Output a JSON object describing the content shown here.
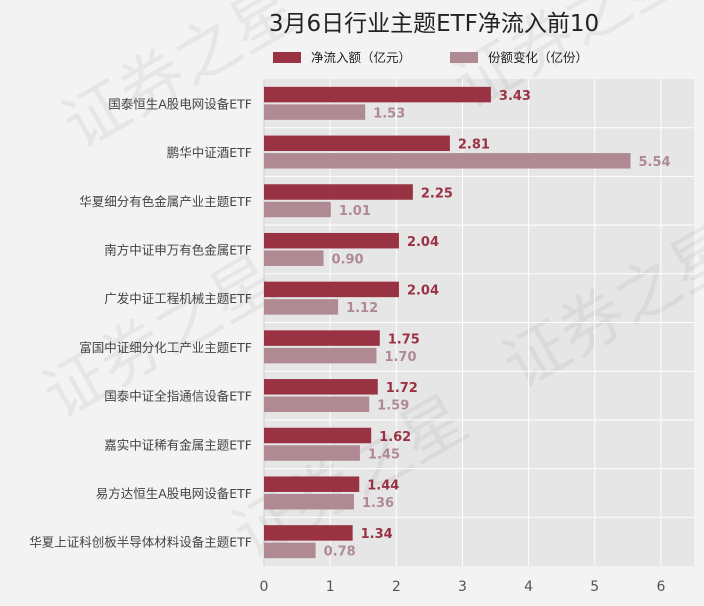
{
  "chart_data": {
    "type": "bar",
    "orientation": "horizontal",
    "title": "3月6日行业主题ETF净流入前10",
    "categories": [
      "国泰恒生A股电网设备ETF",
      "鹏华中证酒ETF",
      "华夏细分有色金属产业主题ETF",
      "南方中证申万有色金属ETF",
      "广发中证工程机械主题ETF",
      "富国中证细分化工产业主题ETF",
      "国泰中证全指通信设备ETF",
      "嘉实中证稀有金属主题ETF",
      "易方达恒生A股电网设备ETF",
      "华夏上证科创板半导体材料设备主题ETF"
    ],
    "series": [
      {
        "name": "净流入额（亿元）",
        "color": "#993344",
        "values": [
          3.43,
          2.81,
          2.25,
          2.04,
          2.04,
          1.75,
          1.72,
          1.62,
          1.44,
          1.34
        ],
        "labels": [
          "3.43",
          "2.81",
          "2.25",
          "2.04",
          "2.04",
          "1.75",
          "1.72",
          "1.62",
          "1.44",
          "1.34"
        ]
      },
      {
        "name": "份额变化（亿份）",
        "color": "#b08a93",
        "values": [
          1.53,
          5.54,
          1.01,
          0.9,
          1.12,
          1.7,
          1.59,
          1.45,
          1.36,
          0.78
        ],
        "labels": [
          "1.53",
          "5.54",
          "1.01",
          "0.90",
          "1.12",
          "1.70",
          "1.59",
          "1.45",
          "1.36",
          "0.78"
        ]
      }
    ],
    "xlim": [
      0,
      6.5
    ],
    "xticks": [
      0,
      1,
      2,
      3,
      4,
      5,
      6
    ],
    "xtick_labels": [
      "0",
      "1",
      "2",
      "3",
      "4",
      "5",
      "6"
    ],
    "grid": true,
    "legend_position": "top",
    "plot_background": "#e6e6e6",
    "watermark": "证券之星"
  }
}
